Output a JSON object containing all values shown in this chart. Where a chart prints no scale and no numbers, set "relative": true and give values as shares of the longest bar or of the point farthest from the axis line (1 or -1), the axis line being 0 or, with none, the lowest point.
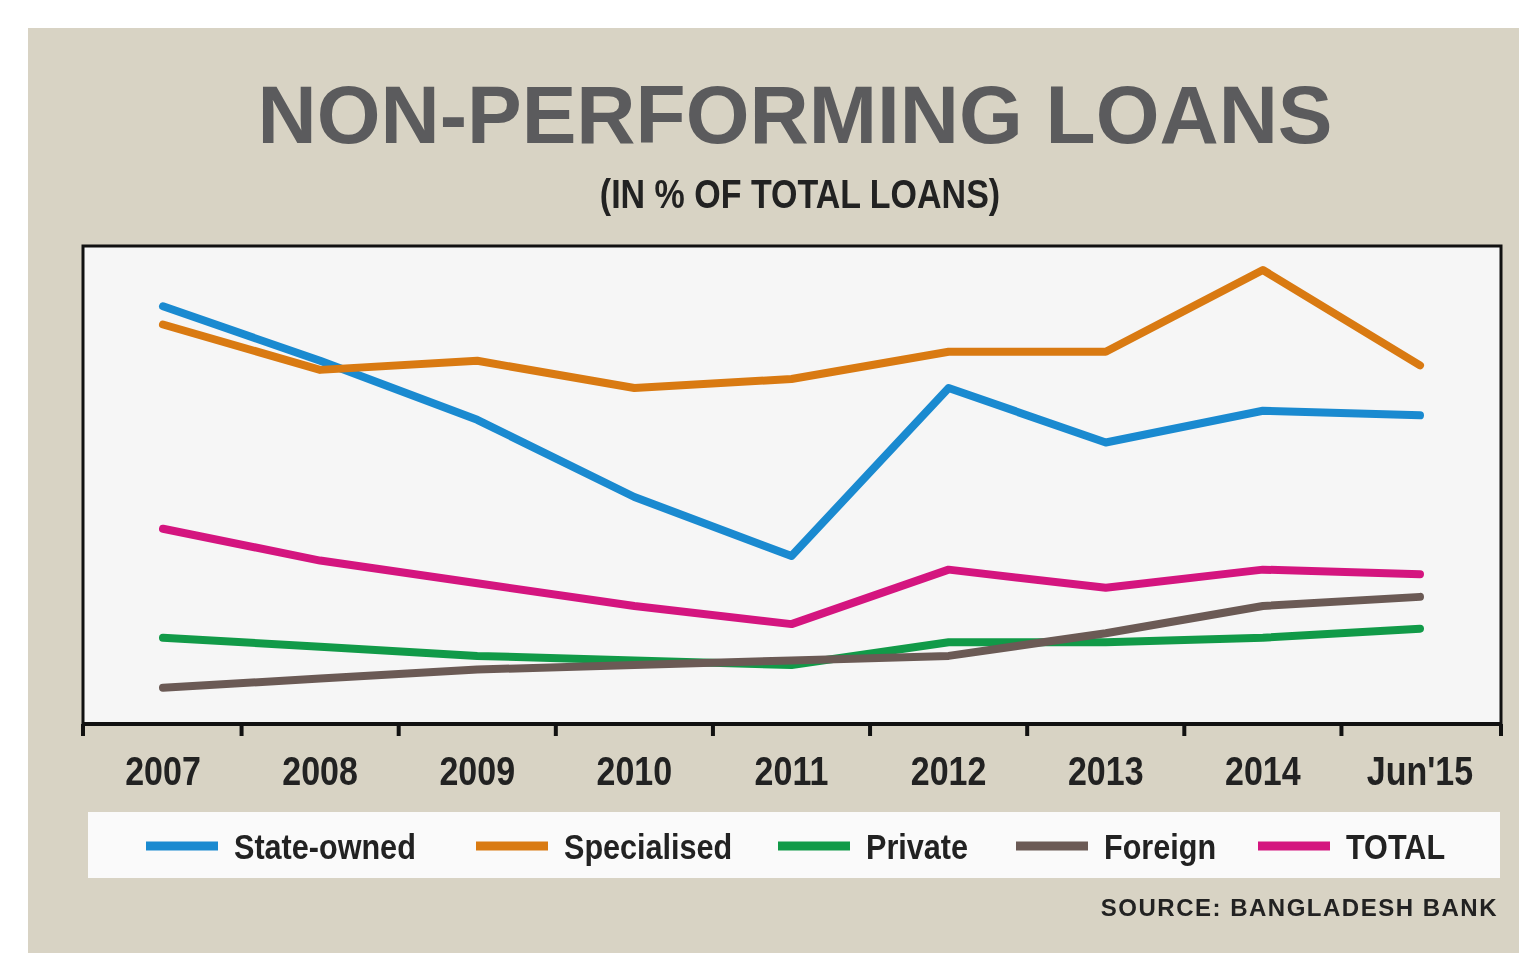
{
  "chart_data": {
    "type": "line",
    "title": "NON-PERFORMING LOANS",
    "subtitle": "(IN % OF TOTAL LOANS)",
    "categories": [
      "2007",
      "2008",
      "2009",
      "2010",
      "2011",
      "2012",
      "2013",
      "2014",
      "Jun'15"
    ],
    "relative": true,
    "legend": "bottom",
    "grid": false,
    "marker": "none",
    "line_style": "solid",
    "series": [
      {
        "name": "State-owned",
        "color": "#1a8ad0",
        "values": [
          0.92,
          0.8,
          0.67,
          0.5,
          0.37,
          0.74,
          0.62,
          0.69,
          0.68
        ]
      },
      {
        "name": "Specialised",
        "color": "#d97a12",
        "values": [
          0.88,
          0.78,
          0.8,
          0.74,
          0.76,
          0.82,
          0.82,
          1,
          0.79
        ]
      },
      {
        "name": "Private",
        "color": "#119a48",
        "values": [
          0.19,
          0.17,
          0.15,
          0.14,
          0.13,
          0.18,
          0.18,
          0.19,
          0.21
        ]
      },
      {
        "name": "Foreign",
        "color": "#6b5a55",
        "values": [
          0.08,
          0.1,
          0.12,
          0.13,
          0.14,
          0.15,
          0.2,
          0.26,
          0.28
        ]
      },
      {
        "name": "TOTAL",
        "color": "#d4157f",
        "values": [
          0.43,
          0.36,
          0.31,
          0.26,
          0.22,
          0.34,
          0.3,
          0.34,
          0.33
        ]
      }
    ],
    "annotations": [
      "SOURCE: BANGLADESH BANK"
    ]
  }
}
